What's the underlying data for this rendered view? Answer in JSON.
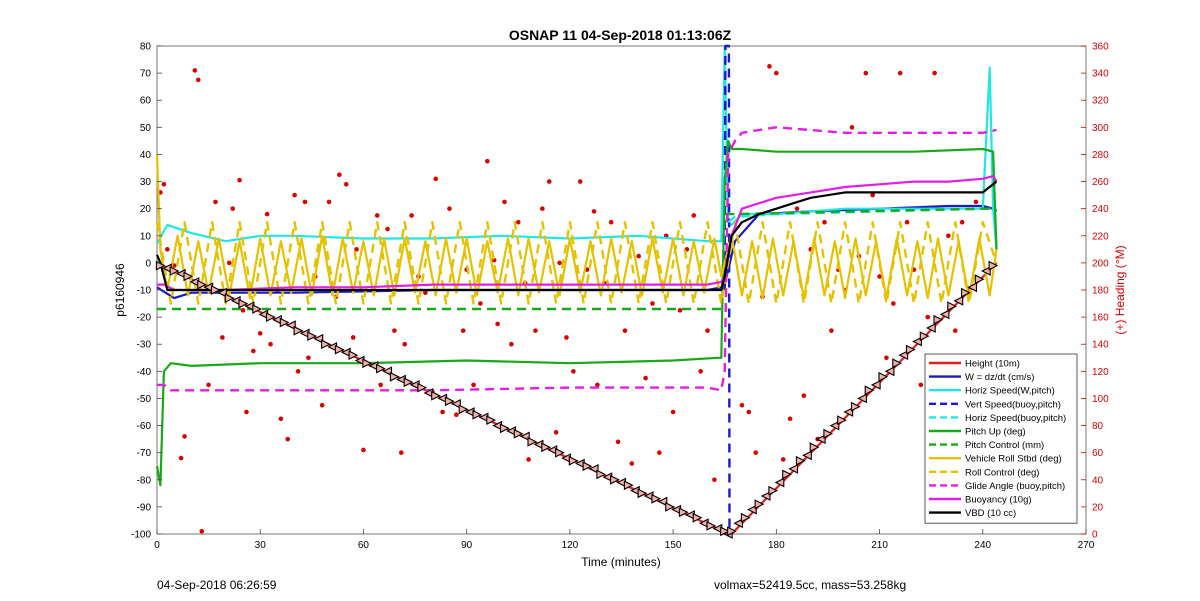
{
  "chart_data": {
    "type": "line",
    "title": "OSNAP 11 04-Sep-2018 01:13:06Z",
    "xlabel": "Time (minutes)",
    "ylabel_left": "p6160946",
    "ylabel_right": "(+) Heading (°M)",
    "xlim": [
      0,
      270
    ],
    "ylim_left": [
      -100,
      80
    ],
    "ylim_right": [
      0,
      360
    ],
    "x_ticks": [
      0,
      30,
      60,
      90,
      120,
      150,
      180,
      210,
      240,
      270
    ],
    "y_ticks_left": [
      -100,
      -90,
      -80,
      -70,
      -60,
      -50,
      -40,
      -30,
      -20,
      -10,
      0,
      10,
      20,
      30,
      40,
      50,
      60,
      70,
      80
    ],
    "y_ticks_right": [
      0,
      20,
      40,
      60,
      80,
      100,
      120,
      140,
      160,
      180,
      200,
      220,
      240,
      260,
      280,
      300,
      320,
      340,
      360
    ],
    "legend_position": "bottom-right",
    "series": [
      {
        "name": "Height (10m)",
        "color": "#e0201b",
        "style": "solid",
        "x": [
          0,
          166,
          167,
          244
        ],
        "y": [
          0,
          -100,
          -100,
          0
        ]
      },
      {
        "name": "W = dz/dt (cm/s)",
        "color": "#1a1ac8",
        "style": "solid",
        "x": [
          0,
          5,
          10,
          40,
          80,
          120,
          160,
          164,
          165,
          168,
          175,
          190,
          210,
          230,
          240,
          243,
          244
        ],
        "y": [
          -9,
          -13,
          -11,
          -11,
          -10,
          -10,
          -10,
          -9,
          -8,
          8,
          18,
          19,
          20,
          21,
          21,
          20,
          19
        ]
      },
      {
        "name": "Horiz Speed(W,pitch)",
        "color": "#21e6e6",
        "style": "solid",
        "x": [
          0,
          3,
          10,
          20,
          30,
          40,
          60,
          80,
          100,
          120,
          140,
          160,
          164,
          165,
          166,
          167,
          170,
          180,
          200,
          220,
          240,
          242,
          243,
          244
        ],
        "y": [
          7,
          14,
          11,
          8,
          10,
          10,
          9,
          9,
          10,
          9,
          10,
          8,
          8,
          80,
          15,
          14,
          18,
          18,
          20,
          20,
          20,
          72,
          20,
          5
        ]
      },
      {
        "name": "Vert Speed(buoy,pitch)",
        "color": "#1a1ac8",
        "style": "dash",
        "x": [
          165,
          165.2,
          166.2,
          166.4,
          167
        ],
        "y": [
          -10,
          80,
          80,
          -100,
          -100
        ]
      },
      {
        "name": "Horiz Speed(buoy,pitch)",
        "color": "#21e6e6",
        "style": "dash",
        "x": [
          166,
          168,
          180,
          240,
          243
        ],
        "y": [
          15,
          17,
          18,
          20,
          20
        ]
      },
      {
        "name": "Pitch Up (deg)",
        "color": "#1aa81a",
        "style": "solid",
        "x": [
          0,
          1,
          2,
          4,
          10,
          30,
          60,
          90,
          120,
          150,
          163,
          164,
          165,
          166,
          167,
          170,
          180,
          200,
          220,
          240,
          243,
          244
        ],
        "y": [
          -75,
          -82,
          -40,
          -37,
          -38,
          -37,
          -37,
          -36,
          -37,
          -36,
          -35,
          -35,
          30,
          45,
          42,
          42,
          41,
          41,
          41,
          42,
          41,
          5
        ]
      },
      {
        "name": "Pitch Control (mm)",
        "color": "#1aa81a",
        "style": "dash",
        "x": [
          0,
          2,
          4,
          164,
          165,
          167,
          240,
          244
        ],
        "y": [
          -17,
          -17,
          -17,
          -17,
          18,
          18,
          20,
          20
        ]
      },
      {
        "name": "Vehicle Roll Stbd (deg)",
        "color": "#e5c100",
        "style": "solid",
        "x": [
          0,
          1,
          3,
          6,
          9,
          12,
          15,
          18,
          21,
          24,
          27,
          30,
          33,
          36,
          39,
          42,
          45,
          48,
          51,
          54,
          57,
          60,
          63,
          66,
          69,
          72,
          75,
          78,
          81,
          84,
          87,
          90,
          93,
          96,
          99,
          102,
          105,
          108,
          111,
          114,
          117,
          120,
          123,
          126,
          129,
          132,
          135,
          138,
          141,
          144,
          147,
          150,
          153,
          156,
          159,
          162,
          164,
          167,
          170,
          173,
          176,
          179,
          182,
          185,
          188,
          191,
          194,
          197,
          200,
          203,
          206,
          209,
          212,
          215,
          218,
          221,
          224,
          227,
          230,
          233,
          236,
          239,
          242,
          244
        ],
        "y": [
          40,
          5,
          -10,
          10,
          -12,
          8,
          -11,
          9,
          -12,
          8,
          -13,
          9,
          -12,
          8,
          -11,
          9,
          -12,
          10,
          -12,
          9,
          -11,
          8,
          -12,
          9,
          -12,
          9,
          -11,
          8,
          -12,
          9,
          -11,
          9,
          -12,
          8,
          -11,
          9,
          -12,
          9,
          -11,
          8,
          -12,
          9,
          -11,
          8,
          -12,
          9,
          -11,
          8,
          -12,
          9,
          -11,
          9,
          -12,
          8,
          -11,
          9,
          -5,
          10,
          -12,
          8,
          -13,
          9,
          -12,
          8,
          -13,
          9,
          -12,
          8,
          -13,
          9,
          -12,
          8,
          -13,
          9,
          -12,
          8,
          -13,
          9,
          -12,
          8,
          -13,
          9,
          -12,
          5
        ]
      },
      {
        "name": "Roll Control (deg)",
        "color": "#e5c100",
        "style": "dash",
        "x": [
          0,
          4,
          8,
          12,
          16,
          20,
          24,
          28,
          32,
          36,
          40,
          44,
          48,
          52,
          56,
          60,
          64,
          68,
          72,
          76,
          80,
          84,
          88,
          92,
          96,
          100,
          104,
          108,
          112,
          116,
          120,
          124,
          128,
          132,
          136,
          140,
          144,
          148,
          152,
          156,
          160,
          164,
          168,
          172,
          176,
          180,
          184,
          188,
          192,
          196,
          200,
          204,
          208,
          212,
          216,
          220,
          224,
          228,
          232,
          236,
          240,
          244
        ],
        "y": [
          15,
          -15,
          15,
          -15,
          15,
          -15,
          15,
          -15,
          15,
          -15,
          15,
          -15,
          15,
          -15,
          15,
          -15,
          15,
          -15,
          15,
          -15,
          15,
          -15,
          15,
          -15,
          15,
          -15,
          15,
          -15,
          15,
          -15,
          15,
          -15,
          15,
          -15,
          15,
          -15,
          15,
          -15,
          15,
          -15,
          15,
          -15,
          15,
          -15,
          15,
          -15,
          15,
          -15,
          15,
          -15,
          15,
          -15,
          15,
          -15,
          15,
          -15,
          15,
          -15,
          15,
          -15,
          15,
          0
        ]
      },
      {
        "name": "Glide Angle (buoy,pitch)",
        "color": "#e21ee2",
        "style": "dash",
        "x": [
          0,
          2,
          4,
          10,
          40,
          80,
          120,
          160,
          164,
          165,
          166,
          168,
          170,
          175,
          180,
          200,
          220,
          240,
          244
        ],
        "y": [
          -45,
          -45,
          -47,
          -47,
          -47,
          -47,
          -46,
          -46,
          -47,
          -40,
          40,
          45,
          48,
          49,
          50,
          48,
          48,
          48,
          49
        ]
      },
      {
        "name": "Buoyancy (10g)",
        "color": "#e21ee2",
        "style": "solid",
        "x": [
          0,
          2,
          5,
          20,
          40,
          60,
          80,
          100,
          120,
          140,
          160,
          164,
          165,
          167,
          170,
          175,
          180,
          190,
          200,
          210,
          220,
          230,
          240,
          243,
          244
        ],
        "y": [
          -8,
          -8,
          -10,
          -10,
          -9,
          -9,
          -8,
          -8,
          -8,
          -8,
          -8,
          -7,
          -5,
          10,
          20,
          22,
          24,
          26,
          28,
          29,
          30,
          30,
          31,
          32,
          30
        ]
      },
      {
        "name": "VBD (10 cc)",
        "color": "#000000",
        "style": "solid",
        "x": [
          0,
          1,
          3,
          10,
          40,
          80,
          120,
          160,
          164,
          165,
          167,
          170,
          175,
          180,
          185,
          190,
          200,
          240,
          243,
          244
        ],
        "y": [
          3,
          0,
          -10,
          -10,
          -10,
          -10,
          -10,
          -10,
          -10,
          -5,
          10,
          15,
          18,
          20,
          22,
          24,
          26,
          26,
          29,
          30
        ]
      }
    ],
    "heading_points": {
      "name": "Heading",
      "color": "#d90000",
      "axis": "right",
      "x": [
        1,
        2,
        3,
        5,
        7,
        8,
        11,
        12,
        13,
        15,
        17,
        19,
        21,
        22,
        24,
        25,
        26,
        28,
        30,
        32,
        33,
        35,
        36,
        38,
        40,
        41,
        43,
        44,
        46,
        48,
        50,
        52,
        53,
        55,
        57,
        58,
        60,
        62,
        64,
        65,
        67,
        69,
        71,
        72,
        74,
        76,
        78,
        80,
        81,
        83,
        85,
        87,
        89,
        90,
        92,
        94,
        96,
        98,
        99,
        101,
        103,
        105,
        107,
        108,
        110,
        112,
        114,
        116,
        117,
        119,
        121,
        123,
        125,
        127,
        128,
        130,
        132,
        134,
        136,
        138,
        140,
        142,
        144,
        146,
        148,
        150,
        152,
        154,
        156,
        158,
        160,
        162,
        170,
        172,
        174,
        176,
        178,
        180,
        182,
        184,
        186,
        188,
        190,
        192,
        194,
        196,
        198,
        200,
        202,
        204,
        206,
        208,
        210,
        212,
        214,
        216,
        218,
        220,
        222,
        224,
        226,
        228,
        230,
        232,
        234,
        236,
        238
      ],
      "y": [
        252,
        258,
        210,
        198,
        56,
        72,
        342,
        335,
        2,
        110,
        245,
        145,
        200,
        240,
        261,
        165,
        90,
        135,
        148,
        236,
        140,
        180,
        85,
        70,
        250,
        120,
        245,
        130,
        190,
        95,
        245,
        175,
        265,
        258,
        145,
        210,
        62,
        125,
        235,
        110,
        225,
        150,
        60,
        140,
        235,
        190,
        178,
        105,
        262,
        90,
        240,
        88,
        150,
        195,
        110,
        170,
        275,
        202,
        155,
        245,
        140,
        230,
        185,
        55,
        150,
        240,
        260,
        75,
        200,
        145,
        120,
        260,
        195,
        238,
        110,
        185,
        230,
        68,
        150,
        52,
        205,
        115,
        170,
        60,
        220,
        90,
        165,
        210,
        235,
        120,
        150,
        40,
        95,
        90,
        60,
        175,
        345,
        340,
        55,
        85,
        240,
        102,
        210,
        70,
        230,
        150,
        195,
        180,
        300,
        205,
        340,
        250,
        190,
        130,
        170,
        340,
        230,
        195,
        110,
        160,
        340,
        120,
        220,
        150,
        230,
        180,
        245
      ]
    },
    "height_markers": {
      "name": "Height markers",
      "color": "#000000",
      "x": [
        1,
        3,
        5,
        7,
        9,
        11,
        13,
        15,
        17,
        19,
        21,
        23,
        25,
        27,
        29,
        31,
        33,
        35,
        37,
        39,
        41,
        43,
        45,
        47,
        49,
        51,
        53,
        55,
        57,
        59,
        61,
        63,
        65,
        67,
        69,
        71,
        73,
        75,
        77,
        79,
        81,
        83,
        85,
        87,
        89,
        91,
        93,
        95,
        97,
        99,
        101,
        103,
        105,
        107,
        109,
        111,
        113,
        115,
        117,
        119,
        121,
        123,
        125,
        127,
        129,
        131,
        133,
        135,
        137,
        139,
        141,
        143,
        145,
        147,
        149,
        151,
        153,
        155,
        157,
        159,
        161,
        163,
        165,
        166,
        167,
        169,
        171,
        173,
        175,
        177,
        179,
        181,
        183,
        185,
        187,
        189,
        191,
        193,
        195,
        197,
        199,
        201,
        203,
        205,
        207,
        209,
        211,
        213,
        215,
        217,
        219,
        221,
        223,
        225,
        227,
        229,
        231,
        233,
        235,
        237,
        239,
        241,
        243
      ],
      "y": [
        -1,
        -2,
        -3,
        -4,
        -5,
        -7,
        -8,
        -9,
        -10,
        -11,
        -13,
        -14,
        -15,
        -16,
        -17,
        -19,
        -20,
        -21,
        -22,
        -23,
        -25,
        -26,
        -27,
        -28,
        -30,
        -31,
        -32,
        -33,
        -34,
        -36,
        -37,
        -38,
        -39,
        -40,
        -42,
        -43,
        -44,
        -45,
        -46,
        -48,
        -49,
        -50,
        -51,
        -52,
        -54,
        -55,
        -56,
        -57,
        -58,
        -60,
        -61,
        -62,
        -63,
        -64,
        -66,
        -67,
        -68,
        -69,
        -70,
        -72,
        -73,
        -74,
        -75,
        -76,
        -78,
        -79,
        -80,
        -81,
        -82,
        -84,
        -85,
        -86,
        -87,
        -88,
        -90,
        -91,
        -92,
        -93,
        -94,
        -96,
        -97,
        -98,
        -99,
        -100,
        -99,
        -96,
        -94,
        -91,
        -89,
        -86,
        -84,
        -81,
        -78,
        -76,
        -73,
        -71,
        -68,
        -65,
        -63,
        -60,
        -58,
        -55,
        -53,
        -50,
        -47,
        -45,
        -42,
        -40,
        -37,
        -34,
        -32,
        -29,
        -27,
        -24,
        -21,
        -19,
        -16,
        -14,
        -11,
        -9,
        -6,
        -3,
        -1
      ]
    }
  },
  "footer": {
    "left": "04-Sep-2018 06:26:59",
    "right": "volmax=52419.5cc, mass=53.258kg"
  }
}
